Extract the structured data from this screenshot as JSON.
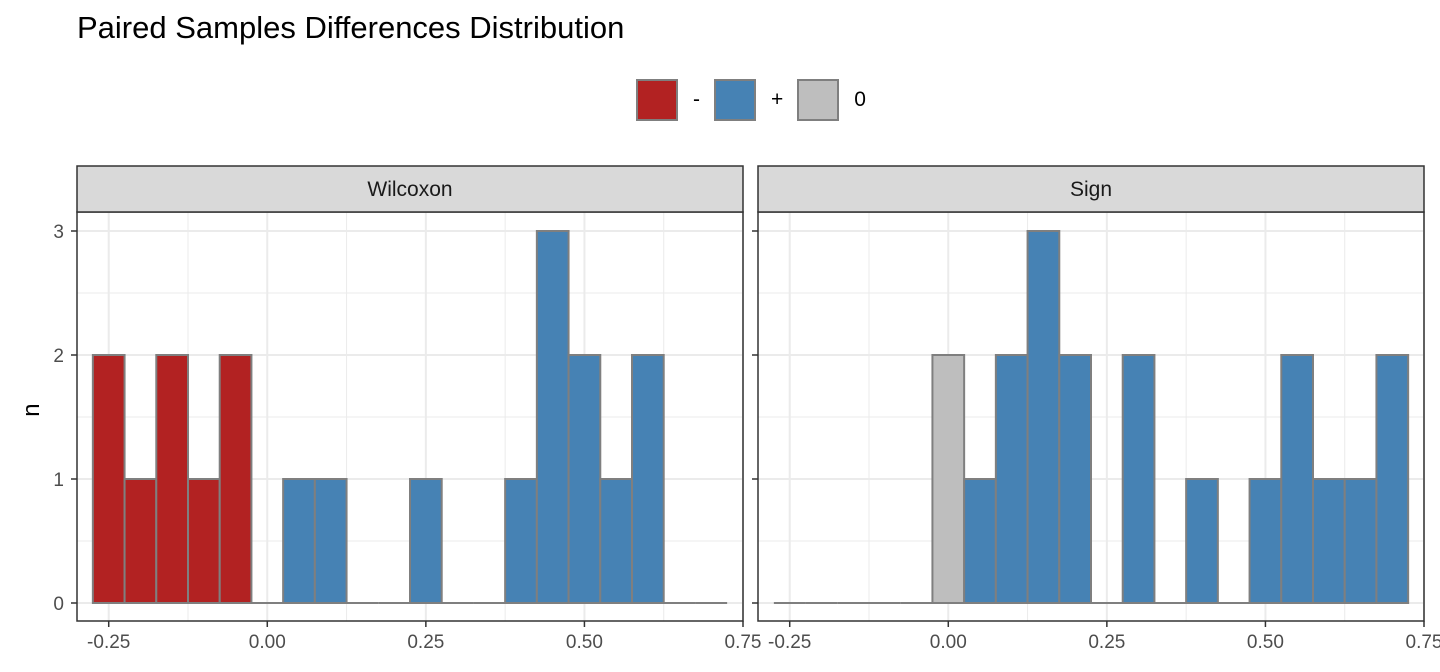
{
  "colors": {
    "negative": "#B22222",
    "positive": "#4682B4",
    "zero": "#BEBEBE",
    "bar_outline": "#7F7F7F",
    "strip_fill": "#D9D9D9",
    "grid": "#EBEBEB"
  },
  "chart_data": {
    "type": "bar",
    "title": "Paired Samples Differences Distribution",
    "ylabel": "n",
    "xlabel": "",
    "xlim": [
      -0.3,
      0.75
    ],
    "ylim": [
      0,
      3
    ],
    "x_ticks": [
      -0.25,
      0.0,
      0.25,
      0.5,
      0.75
    ],
    "x_tick_labels": [
      "-0.25",
      "0.00",
      "0.25",
      "0.50",
      "0.75"
    ],
    "y_ticks": [
      0,
      1,
      2,
      3
    ],
    "y_tick_labels": [
      "0",
      "1",
      "2",
      "3"
    ],
    "bin_width": 0.05,
    "legend": {
      "position": "top",
      "entries": [
        {
          "label": "-",
          "key": "negative"
        },
        {
          "label": "+",
          "key": "positive"
        },
        {
          "label": "0",
          "key": "zero"
        }
      ]
    },
    "panels": [
      {
        "strip": "Wilcoxon",
        "bins": [
          {
            "x": -0.25,
            "n": 2,
            "sign": "negative"
          },
          {
            "x": -0.2,
            "n": 1,
            "sign": "negative"
          },
          {
            "x": -0.15,
            "n": 2,
            "sign": "negative"
          },
          {
            "x": -0.1,
            "n": 1,
            "sign": "negative"
          },
          {
            "x": -0.05,
            "n": 2,
            "sign": "negative"
          },
          {
            "x": 0.0,
            "n": 0,
            "sign": "negative"
          },
          {
            "x": 0.05,
            "n": 1,
            "sign": "positive"
          },
          {
            "x": 0.1,
            "n": 1,
            "sign": "positive"
          },
          {
            "x": 0.15,
            "n": 0,
            "sign": "positive"
          },
          {
            "x": 0.2,
            "n": 0,
            "sign": "positive"
          },
          {
            "x": 0.25,
            "n": 1,
            "sign": "positive"
          },
          {
            "x": 0.3,
            "n": 0,
            "sign": "positive"
          },
          {
            "x": 0.35,
            "n": 0,
            "sign": "positive"
          },
          {
            "x": 0.4,
            "n": 1,
            "sign": "positive"
          },
          {
            "x": 0.45,
            "n": 3,
            "sign": "positive"
          },
          {
            "x": 0.5,
            "n": 2,
            "sign": "positive"
          },
          {
            "x": 0.55,
            "n": 1,
            "sign": "positive"
          },
          {
            "x": 0.6,
            "n": 2,
            "sign": "positive"
          },
          {
            "x": 0.65,
            "n": 0,
            "sign": "positive"
          },
          {
            "x": 0.7,
            "n": 0,
            "sign": "positive"
          }
        ]
      },
      {
        "strip": "Sign",
        "bins": [
          {
            "x": -0.25,
            "n": 0,
            "sign": "zero"
          },
          {
            "x": -0.2,
            "n": 0,
            "sign": "zero"
          },
          {
            "x": -0.15,
            "n": 0,
            "sign": "zero"
          },
          {
            "x": -0.1,
            "n": 0,
            "sign": "zero"
          },
          {
            "x": -0.05,
            "n": 0,
            "sign": "zero"
          },
          {
            "x": 0.0,
            "n": 2,
            "sign": "zero"
          },
          {
            "x": 0.05,
            "n": 1,
            "sign": "positive"
          },
          {
            "x": 0.1,
            "n": 2,
            "sign": "positive"
          },
          {
            "x": 0.15,
            "n": 3,
            "sign": "positive"
          },
          {
            "x": 0.2,
            "n": 2,
            "sign": "positive"
          },
          {
            "x": 0.25,
            "n": 0,
            "sign": "positive"
          },
          {
            "x": 0.3,
            "n": 2,
            "sign": "positive"
          },
          {
            "x": 0.35,
            "n": 0,
            "sign": "positive"
          },
          {
            "x": 0.4,
            "n": 1,
            "sign": "positive"
          },
          {
            "x": 0.45,
            "n": 0,
            "sign": "positive"
          },
          {
            "x": 0.5,
            "n": 1,
            "sign": "positive"
          },
          {
            "x": 0.55,
            "n": 2,
            "sign": "positive"
          },
          {
            "x": 0.6,
            "n": 1,
            "sign": "positive"
          },
          {
            "x": 0.65,
            "n": 1,
            "sign": "positive"
          },
          {
            "x": 0.7,
            "n": 2,
            "sign": "positive"
          }
        ]
      }
    ]
  }
}
